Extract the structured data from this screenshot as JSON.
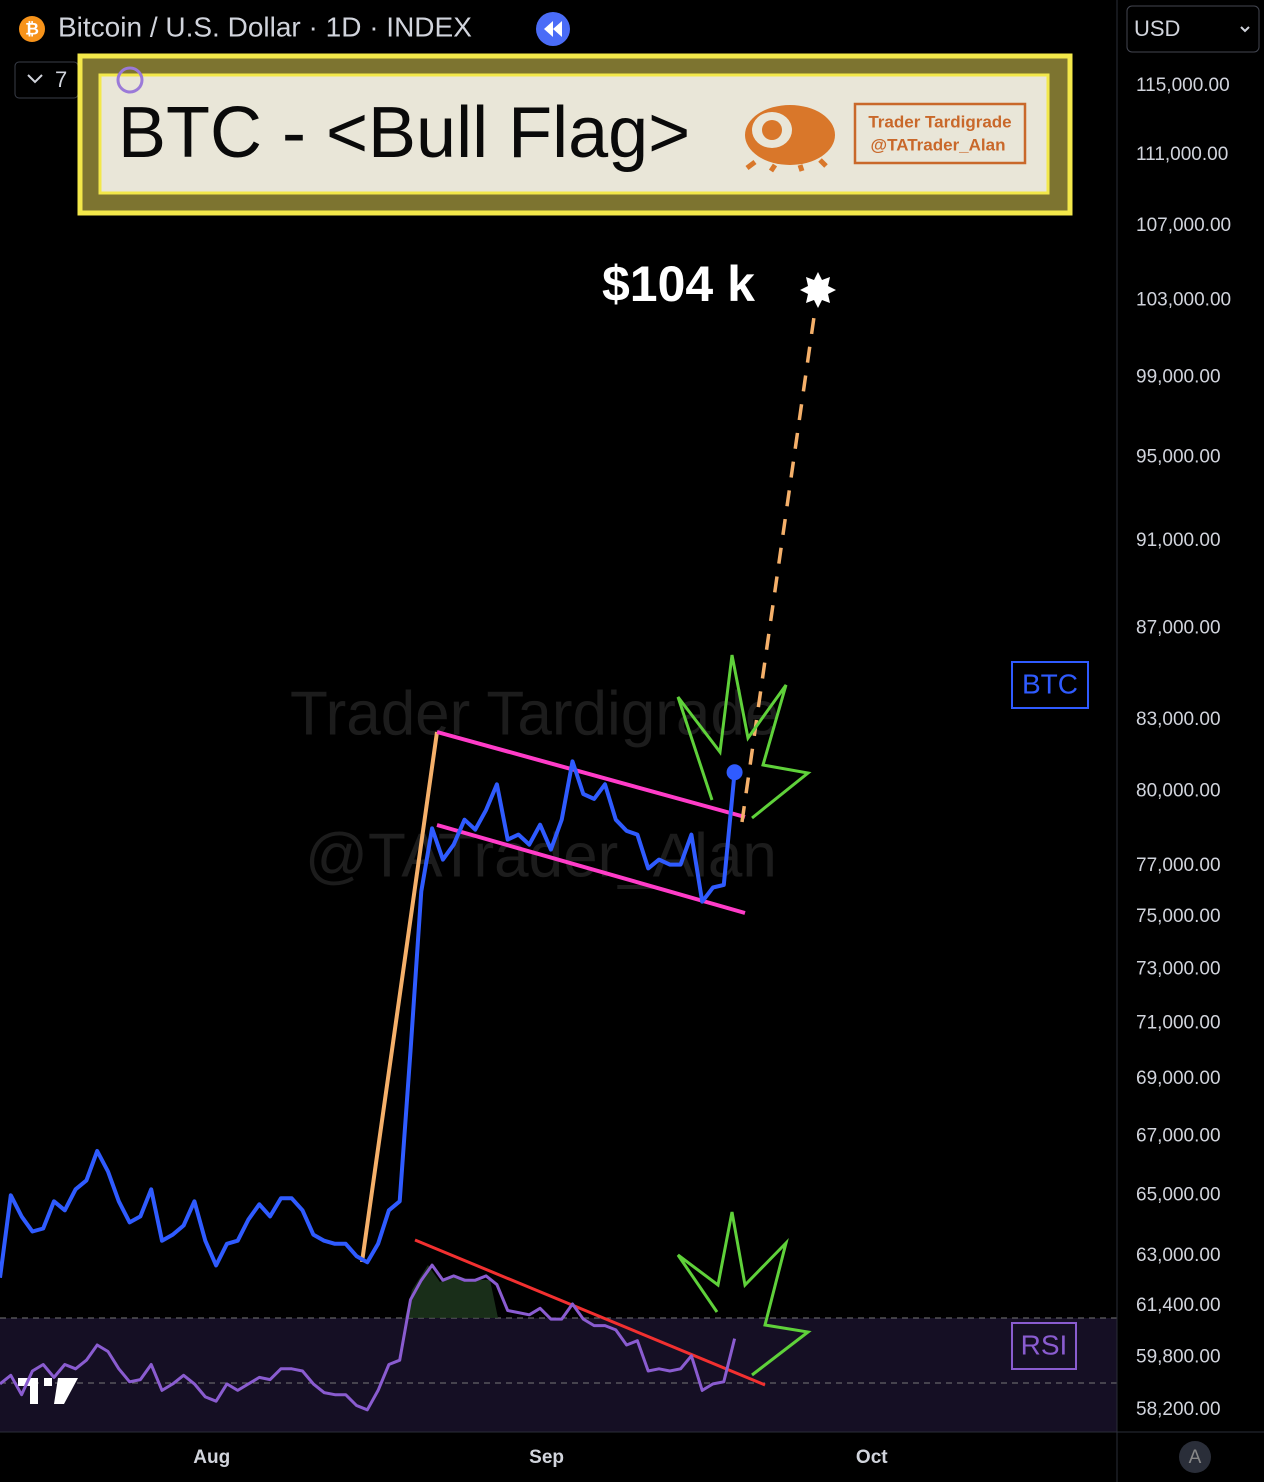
{
  "chart_data": {
    "type": "line",
    "title": "Bitcoin / U.S. Dollar · 1D · INDEX",
    "indicator_count": "7",
    "banner_title": "BTC - <Bull Flag>",
    "badge": [
      "Trader Tardigrade",
      "@TATrader_Alan"
    ],
    "target_label": "$104 k",
    "watermark": [
      "Trader Tardigrade",
      "@TATrader_Alan"
    ],
    "currency": "USD",
    "scale_button": "A",
    "log_scale": true,
    "grid": false,
    "ylim": [
      57550,
      120200
    ],
    "yticks": [
      {
        "value": 115000,
        "label": "115,000.00"
      },
      {
        "value": 111000,
        "label": "111,000.00"
      },
      {
        "value": 107000,
        "label": "107,000.00"
      },
      {
        "value": 103000,
        "label": "103,000.00"
      },
      {
        "value": 99000,
        "label": "99,000.00"
      },
      {
        "value": 95000,
        "label": "95,000.00"
      },
      {
        "value": 91000,
        "label": "91,000.00"
      },
      {
        "value": 87000,
        "label": "87,000.00"
      },
      {
        "value": 83000,
        "label": "83,000.00"
      },
      {
        "value": 80000,
        "label": "80,000.00"
      },
      {
        "value": 77000,
        "label": "77,000.00"
      },
      {
        "value": 75000,
        "label": "75,000.00"
      },
      {
        "value": 73000,
        "label": "73,000.00"
      },
      {
        "value": 71000,
        "label": "71,000.00"
      },
      {
        "value": 69000,
        "label": "69,000.00"
      },
      {
        "value": 67000,
        "label": "67,000.00"
      },
      {
        "value": 65000,
        "label": "65,000.00"
      },
      {
        "value": 63000,
        "label": "63,000.00"
      },
      {
        "value": 61400,
        "label": "61,400.00"
      },
      {
        "value": 59800,
        "label": "59,800.00"
      },
      {
        "value": 58200,
        "label": "58,200.00"
      }
    ],
    "xlim": [
      0,
      103.4
    ],
    "xticks": [
      {
        "value": 19.6,
        "label": "Aug"
      },
      {
        "value": 50.6,
        "label": "Sep"
      },
      {
        "value": 80.7,
        "label": "Oct"
      }
    ],
    "series": [
      {
        "name": "BTC",
        "color": "#2f5bff",
        "values": [
          62300,
          65000,
          64300,
          63800,
          63900,
          64800,
          64500,
          65200,
          65500,
          66500,
          65800,
          64800,
          64100,
          64300,
          65200,
          63500,
          63700,
          64000,
          64800,
          63500,
          62700,
          63400,
          63500,
          64200,
          64700,
          64300,
          64900,
          64900,
          64500,
          63700,
          63500,
          63400,
          63400,
          63000,
          62800,
          63400,
          64500,
          64800,
          70000,
          76000,
          78500,
          77250,
          77850,
          78850,
          78450,
          79250,
          80300,
          78050,
          78250,
          77850,
          78650,
          77650,
          78850,
          81250,
          79900,
          79700,
          80300,
          78850,
          78400,
          78250,
          76900,
          77250,
          77050,
          77050,
          78250,
          75600,
          76150,
          76250,
          80800
        ]
      },
      {
        "name": "RSI",
        "color": "#8a5cd0",
        "ylim": [
          20,
          95
        ],
        "values": [
          33,
          37,
          28,
          39,
          42,
          36,
          42,
          40,
          44,
          51,
          48,
          40,
          34,
          35,
          42,
          30,
          33,
          37,
          33,
          27,
          25,
          33,
          30,
          33,
          36,
          35,
          40,
          40,
          39,
          33,
          29,
          28,
          28,
          23,
          21,
          30,
          42,
          44,
          72,
          81,
          88,
          81,
          83,
          81,
          81,
          83,
          79,
          67,
          66,
          65,
          68,
          63,
          63,
          70,
          63,
          60,
          60,
          58,
          51,
          53,
          39,
          40,
          39,
          40,
          46,
          30,
          33,
          34,
          54
        ]
      }
    ]
  }
}
